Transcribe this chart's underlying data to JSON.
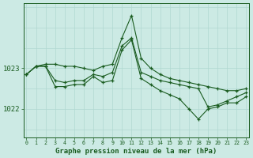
{
  "bg_color": "#cceae4",
  "grid_color_major": "#b0d8d0",
  "grid_color_minor": "#c4e4de",
  "line_color": "#1a5c20",
  "xlabel": "Graphe pression niveau de la mer (hPa)",
  "ytick_labels": [
    1022,
    1023
  ],
  "ylim": [
    1021.3,
    1024.6
  ],
  "xlim": [
    -0.3,
    23.3
  ],
  "series": [
    {
      "x": [
        0,
        1,
        2,
        3,
        4,
        5,
        6,
        7,
        8,
        9,
        10,
        11,
        12,
        13,
        14,
        15,
        16,
        17,
        18,
        19,
        20,
        21,
        22,
        23
      ],
      "y": [
        1022.85,
        1023.05,
        1023.1,
        1023.1,
        1023.05,
        1023.05,
        1023.0,
        1022.95,
        1023.05,
        1023.1,
        1023.75,
        1024.3,
        1023.25,
        1023.0,
        1022.85,
        1022.75,
        1022.7,
        1022.65,
        1022.6,
        1022.55,
        1022.5,
        1022.45,
        1022.45,
        1022.5
      ]
    },
    {
      "x": [
        0,
        1,
        2,
        3,
        4,
        5,
        6,
        7,
        8,
        9,
        10,
        11,
        12,
        13,
        14,
        15,
        16,
        17,
        18,
        19,
        20,
        21,
        22,
        23
      ],
      "y": [
        1022.85,
        1023.05,
        1023.05,
        1022.7,
        1022.65,
        1022.7,
        1022.7,
        1022.85,
        1022.8,
        1022.9,
        1023.55,
        1023.75,
        1022.9,
        1022.8,
        1022.7,
        1022.65,
        1022.6,
        1022.55,
        1022.5,
        1022.05,
        1022.1,
        1022.2,
        1022.3,
        1022.4
      ]
    },
    {
      "x": [
        0,
        1,
        2,
        3,
        4,
        5,
        6,
        7,
        8,
        9,
        10,
        11,
        12,
        13,
        14,
        15,
        16,
        17,
        18,
        19,
        20,
        21,
        22,
        23
      ],
      "y": [
        1022.85,
        1023.05,
        1023.05,
        1022.55,
        1022.55,
        1022.6,
        1022.6,
        1022.8,
        1022.65,
        1022.7,
        1023.45,
        1023.7,
        1022.75,
        1022.6,
        1022.45,
        1022.35,
        1022.25,
        1022.0,
        1021.75,
        1022.0,
        1022.05,
        1022.15,
        1022.15,
        1022.3
      ]
    }
  ]
}
